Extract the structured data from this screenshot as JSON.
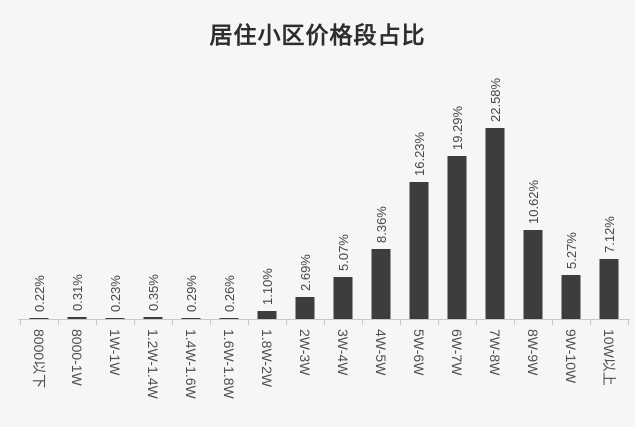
{
  "chart": {
    "colors": {
      "background": "#f6f6f7",
      "bar": "#3d3d3d",
      "axis": "#c9c9c9",
      "value_label": "#474747",
      "axis_label": "#4f4f4f",
      "title": "#2d2d2d"
    }
  },
  "chart_data": {
    "type": "bar",
    "title": "居住小区价格段占比",
    "categories": [
      "8000以下",
      "8000-1W",
      "1W-1W",
      "1.2W-1.4W",
      "1.4W-1.6W",
      "1.6W-1.8W",
      "1.8W-2W",
      "2W-3W",
      "3W-4W",
      "4W-5W",
      "5W-6W",
      "6W-7W",
      "7W-8W",
      "8W-9W",
      "9W-10W",
      "10W以上"
    ],
    "values": [
      0.22,
      0.31,
      0.23,
      0.35,
      0.29,
      0.26,
      1.1,
      2.69,
      5.07,
      8.36,
      16.23,
      19.29,
      22.58,
      10.62,
      5.27,
      7.12
    ],
    "value_labels": [
      "0.22%",
      "0.31%",
      "0.23%",
      "0.35%",
      "0.29%",
      "0.26%",
      "1.10%",
      "2.69%",
      "5.07%",
      "8.36%",
      "16.23%",
      "19.29%",
      "22.58%",
      "10.62%",
      "5.27%",
      "7.12%"
    ],
    "xlabel": "",
    "ylabel": "",
    "ylim": [
      0,
      24
    ],
    "grid": false,
    "legend": "none",
    "value_label_rotation": -90,
    "axis_label_rotation": 90
  }
}
